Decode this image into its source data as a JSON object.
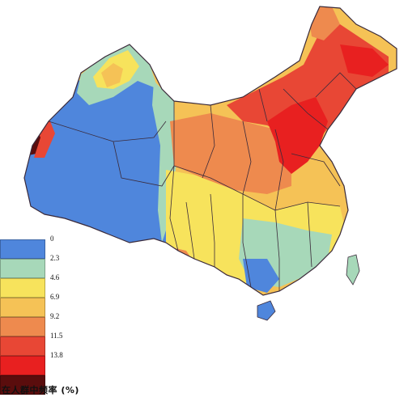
{
  "legend": {
    "items": [
      {
        "label": "0",
        "color": "#4f86dc"
      },
      {
        "label": "2.3",
        "color": "#a7d8b9"
      },
      {
        "label": "4.6",
        "color": "#f7e35c"
      },
      {
        "label": "6.9",
        "color": "#f5c256"
      },
      {
        "label": "9.2",
        "color": "#ee8a4e"
      },
      {
        "label": "11.5",
        "color": "#e84735"
      },
      {
        "label": "13.8",
        "color": "#e82020"
      },
      {
        "label": "",
        "color": "#5a0d0d"
      }
    ],
    "caption": "在人群中频率 (%)"
  },
  "colors": {
    "border": "#3a2a3a",
    "background": "#ffffff"
  }
}
